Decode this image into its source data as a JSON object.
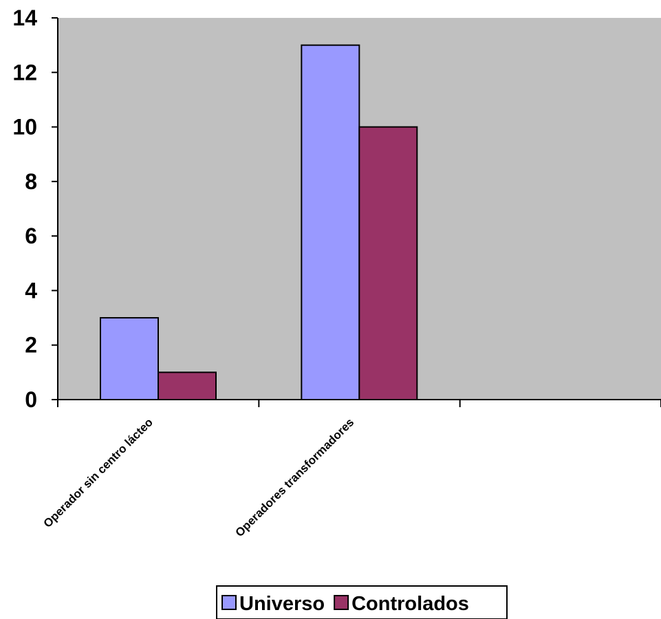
{
  "chart_data": {
    "type": "bar",
    "title": "",
    "xlabel": "",
    "ylabel": "",
    "categories": [
      "Operador sin centro lácteo",
      "Operadores transformadores",
      ""
    ],
    "series": [
      {
        "name": "Universo",
        "values": [
          3,
          13,
          null
        ],
        "color": "#9999FF"
      },
      {
        "name": "Controlados",
        "values": [
          1,
          10,
          null
        ],
        "color": "#993366"
      }
    ],
    "ylim": [
      0,
      14
    ],
    "yticks": [
      "0",
      "2",
      "4",
      "6",
      "8",
      "10",
      "12",
      "14"
    ],
    "grid": false,
    "plot_background": "#C0C0C0",
    "legend_position": "bottom"
  }
}
